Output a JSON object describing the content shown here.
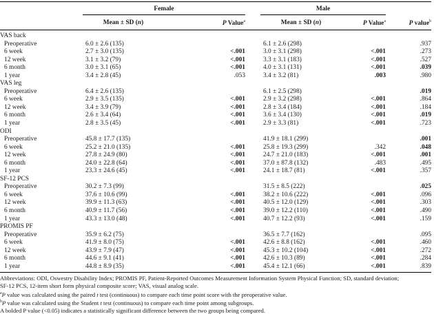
{
  "header": {
    "female": "Female",
    "male": "Male",
    "mean_sd_label": "Mean ± SD (",
    "n_label": "n",
    "close_paren": ")",
    "p_label": "P",
    "value_label": " Value",
    "p_value_lower": " value",
    "sup_a": "a",
    "sup_b": "b"
  },
  "groups": [
    {
      "name": "VAS back",
      "rows": [
        {
          "label": "Preoperative",
          "f_mean": "6.0 ± 2.6 (135)",
          "f_p": "",
          "f_p_bold": false,
          "m_mean": "6.1 ± 2.6 (298)",
          "m_p": "",
          "m_p_bold": false,
          "pval": ".937",
          "pval_bold": false
        },
        {
          "label": "6 week",
          "f_mean": "2.7 ± 3.0 (135)",
          "f_p": "<.001",
          "f_p_bold": true,
          "m_mean": "3.0 ± 3.1 (298)",
          "m_p": "<.001",
          "m_p_bold": true,
          "pval": ".273",
          "pval_bold": false
        },
        {
          "label": "12 week",
          "f_mean": "3.1 ± 3.2 (79)",
          "f_p": "<.001",
          "f_p_bold": true,
          "m_mean": "3.3 ± 3.1 (183)",
          "m_p": "<.001",
          "m_p_bold": true,
          "pval": ".527",
          "pval_bold": false
        },
        {
          "label": "6 month",
          "f_mean": "3.0 ± 3.1 (65)",
          "f_p": "<.001",
          "f_p_bold": true,
          "m_mean": "4.0 ± 3.1 (131)",
          "m_p": "<.001",
          "m_p_bold": true,
          "pval": ".039",
          "pval_bold": true
        },
        {
          "label": "1 year",
          "f_mean": "3.4 ± 2.8 (45)",
          "f_p": ".053",
          "f_p_bold": false,
          "m_mean": "3.4 ± 3.2 (81)",
          "m_p": ".003",
          "m_p_bold": true,
          "pval": ".980",
          "pval_bold": false
        }
      ]
    },
    {
      "name": "VAS leg",
      "rows": [
        {
          "label": "Preoperative",
          "f_mean": "6.4 ± 2.6 (135)",
          "f_p": "",
          "f_p_bold": false,
          "m_mean": "6.1 ± 2.5 (298)",
          "m_p": "",
          "m_p_bold": false,
          "pval": ".019",
          "pval_bold": true
        },
        {
          "label": "6 week",
          "f_mean": "2.9 ± 3.5 (135)",
          "f_p": "<.001",
          "f_p_bold": true,
          "m_mean": "2.9 ± 3.2 (298)",
          "m_p": "<.001",
          "m_p_bold": true,
          "pval": ".864",
          "pval_bold": false
        },
        {
          "label": "12 week",
          "f_mean": "3.4 ± 3.9 (79)",
          "f_p": "<.001",
          "f_p_bold": true,
          "m_mean": "2.8 ± 3.4 (184)",
          "m_p": "<.001",
          "m_p_bold": true,
          "pval": ".184",
          "pval_bold": false
        },
        {
          "label": "6 month",
          "f_mean": "2.6 ± 3.4 (64)",
          "f_p": "<.001",
          "f_p_bold": true,
          "m_mean": "3.6 ± 3.4 (130)",
          "m_p": "<.001",
          "m_p_bold": true,
          "pval": ".019",
          "pval_bold": true
        },
        {
          "label": "1 year",
          "f_mean": "2.8 ± 3.5 (45)",
          "f_p": "<.001",
          "f_p_bold": true,
          "m_mean": "2.9 ± 3.3 (81)",
          "m_p": "<.001",
          "m_p_bold": true,
          "pval": ".723",
          "pval_bold": false
        }
      ]
    },
    {
      "name": "ODI",
      "rows": [
        {
          "label": "Preoperative",
          "f_mean": "45.8 ± 17.7 (135)",
          "f_p": "",
          "f_p_bold": false,
          "m_mean": "41.9 ± 18.1 (299)",
          "m_p": "",
          "m_p_bold": false,
          "pval": ".001",
          "pval_bold": true
        },
        {
          "label": "6 week",
          "f_mean": "25.2 ± 21.0 (135)",
          "f_p": "<.001",
          "f_p_bold": true,
          "m_mean": "25.8 ± 19.3 (299)",
          "m_p": ".342",
          "m_p_bold": false,
          "pval": ".048",
          "pval_bold": true
        },
        {
          "label": "12 week",
          "f_mean": "27.8 ± 24.9 (80)",
          "f_p": "<.001",
          "f_p_bold": true,
          "m_mean": "24.7 ± 21.0 (183)",
          "m_p": "<.001",
          "m_p_bold": true,
          "pval": ".001",
          "pval_bold": true
        },
        {
          "label": "6 month",
          "f_mean": "24.0 ± 22.8 (64)",
          "f_p": "<.001",
          "f_p_bold": true,
          "m_mean": "37.0 ± 87.8 (132)",
          "m_p": ".483",
          "m_p_bold": false,
          "pval": ".495",
          "pval_bold": false
        },
        {
          "label": "1 year",
          "f_mean": "23.3 ± 24.6 (45)",
          "f_p": "<.001",
          "f_p_bold": true,
          "m_mean": "24.1 ± 18.7 (81)",
          "m_p": "<.001",
          "m_p_bold": true,
          "pval": ".357",
          "pval_bold": false
        }
      ]
    },
    {
      "name": "SF-12 PCS",
      "rows": [
        {
          "label": "Preoperative",
          "f_mean": "30.2 ± 7.3 (99)",
          "f_p": "",
          "f_p_bold": false,
          "m_mean": "31.5 ± 8.5 (222)",
          "m_p": "",
          "m_p_bold": false,
          "pval": ".025",
          "pval_bold": true
        },
        {
          "label": "6 week",
          "f_mean": "37.6 ± 10.6 (99)",
          "f_p": "<.001",
          "f_p_bold": true,
          "m_mean": "38.2 ± 10.6 (222)",
          "m_p": "<.001",
          "m_p_bold": true,
          "pval": ".096",
          "pval_bold": false
        },
        {
          "label": "12 week",
          "f_mean": "39.9 ± 11.3 (63)",
          "f_p": "<.001",
          "f_p_bold": true,
          "m_mean": "40.5 ± 12.0 (129)",
          "m_p": "<.001",
          "m_p_bold": true,
          "pval": ".303",
          "pval_bold": false
        },
        {
          "label": "6 month",
          "f_mean": "40.9 ± 11.7 (56)",
          "f_p": "<.001",
          "f_p_bold": true,
          "m_mean": "39.0 ± 12.2 (110)",
          "m_p": "<.001",
          "m_p_bold": true,
          "pval": ".490",
          "pval_bold": false
        },
        {
          "label": "1 year",
          "f_mean": "43.3 ± 13.0 (48)",
          "f_p": "<.001",
          "f_p_bold": true,
          "m_mean": "40.7 ± 12.2 (93)",
          "m_p": "<.001",
          "m_p_bold": true,
          "pval": ".159",
          "pval_bold": false
        }
      ]
    },
    {
      "name": "PROMIS PF",
      "rows": [
        {
          "label": "Preoperative",
          "f_mean": "35.9 ± 6.2 (75)",
          "f_p": "",
          "f_p_bold": false,
          "m_mean": "36.5 ± 7.7 (162)",
          "m_p": "",
          "m_p_bold": false,
          "pval": ".095",
          "pval_bold": false
        },
        {
          "label": "6 week",
          "f_mean": "41.9 ± 8.0 (75)",
          "f_p": "<.001",
          "f_p_bold": true,
          "m_mean": "42.6 ± 8.8 (162)",
          "m_p": "<.001",
          "m_p_bold": true,
          "pval": ".460",
          "pval_bold": false
        },
        {
          "label": "12 week",
          "f_mean": "43.9 ± 7.9 (47)",
          "f_p": "<.001",
          "f_p_bold": true,
          "m_mean": "45.3 ± 10.2 (104)",
          "m_p": "<.001",
          "m_p_bold": true,
          "pval": ".272",
          "pval_bold": false
        },
        {
          "label": "6 month",
          "f_mean": "44.6 ± 9.1 (41)",
          "f_p": "<.001",
          "f_p_bold": true,
          "m_mean": "42.6 ± 10.3 (89)",
          "m_p": "<.001",
          "m_p_bold": true,
          "pval": ".284",
          "pval_bold": false
        },
        {
          "label": "1 year",
          "f_mean": "44.8 ± 8.9 (35)",
          "f_p": "<.001",
          "f_p_bold": true,
          "m_mean": "45.4 ± 12.1 (66)",
          "m_p": "<.001",
          "m_p_bold": true,
          "pval": ".839",
          "pval_bold": false
        }
      ]
    }
  ],
  "footnotes": {
    "abbreviations": "Abbreviations: ODI, Oswestry Disability Index; PROMIS PF, Patient-Reported Outcomes Measurement Information System Physical Function; SD, standard deviation;",
    "abbreviations_cont": "SF-12 PCS, 12-item short form physical composite score; VAS, visual analog scale.",
    "note_a_sup": "a",
    "note_a_p": "P",
    "note_a_mid": " value was calculated using the paired ",
    "note_a_t": "t",
    "note_a_end": " test (continuous) to compare each time point score with the preoperative value.",
    "note_b_sup": "b",
    "note_b_p": "P",
    "note_b_mid": " value was calculated using the Student ",
    "note_b_t": "t",
    "note_b_end": " test (continuous) to compare each time point among subgroups.",
    "note_bold": "A bolded P value (<0.05) indicates a statistically significant difference between the two groups being compared."
  }
}
